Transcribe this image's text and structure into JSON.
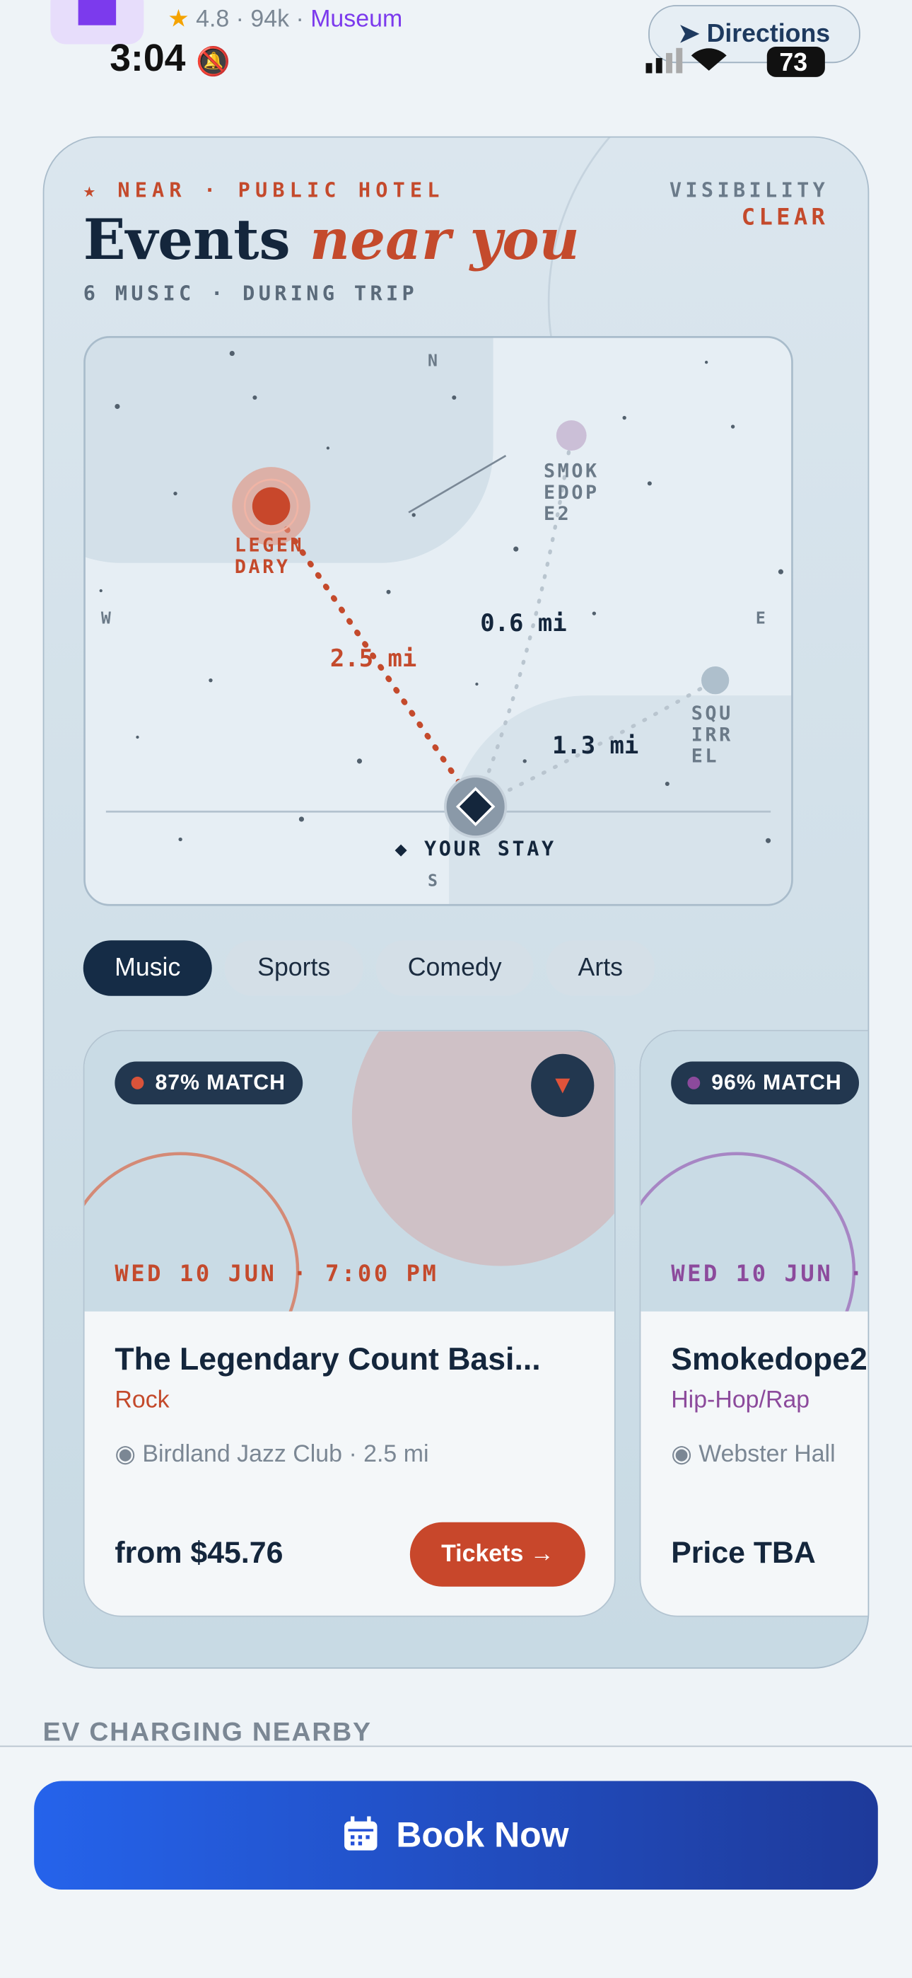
{
  "status_bar": {
    "time": "3:04",
    "battery": "73"
  },
  "place_header": {
    "rating": "4.8 · 94k",
    "separator": "·",
    "category": "Museum",
    "directions": "Directions"
  },
  "events_card": {
    "eyebrow": "★ NEAR · PUBLIC HOTEL",
    "visibility_label": "VISIBILITY",
    "visibility_value": "CLEAR",
    "title": "Events",
    "title_accent": "near you",
    "subtitle": "6 MUSIC · DURING TRIP",
    "map": {
      "compass": {
        "n": "N",
        "s": "S",
        "e": "E",
        "w": "W"
      },
      "venues": [
        {
          "label_lines": [
            "LEGEN",
            "DARY"
          ],
          "distance": "2.5 mi"
        },
        {
          "label_lines": [
            "SMOK",
            "EDOP",
            "E2"
          ],
          "distance": "0.6 mi"
        },
        {
          "label_lines": [
            "SQU",
            "IRR",
            "EL"
          ],
          "distance": "1.3 mi"
        }
      ],
      "home_label": "◆ YOUR STAY"
    },
    "filters": [
      "Music",
      "Sports",
      "Comedy",
      "Arts"
    ],
    "events": [
      {
        "match": "87% MATCH",
        "date": "WED 10 JUN · 7:00 PM",
        "title": "The Legendary Count Basi...",
        "genre": "Rock",
        "venue": "Birdland Jazz Club",
        "separator": "·",
        "distance": "2.5 mi",
        "price": "from $45.76",
        "cta": "Tickets →"
      },
      {
        "match": "96% MATCH",
        "date": "WED 10 JUN ·",
        "title": "Smokedope2",
        "genre": "Hip-Hop/Rap",
        "venue": "Webster Hall",
        "price": "Price TBA"
      }
    ]
  },
  "section_title": "EV CHARGING NEARBY",
  "book_button": "Book Now"
}
